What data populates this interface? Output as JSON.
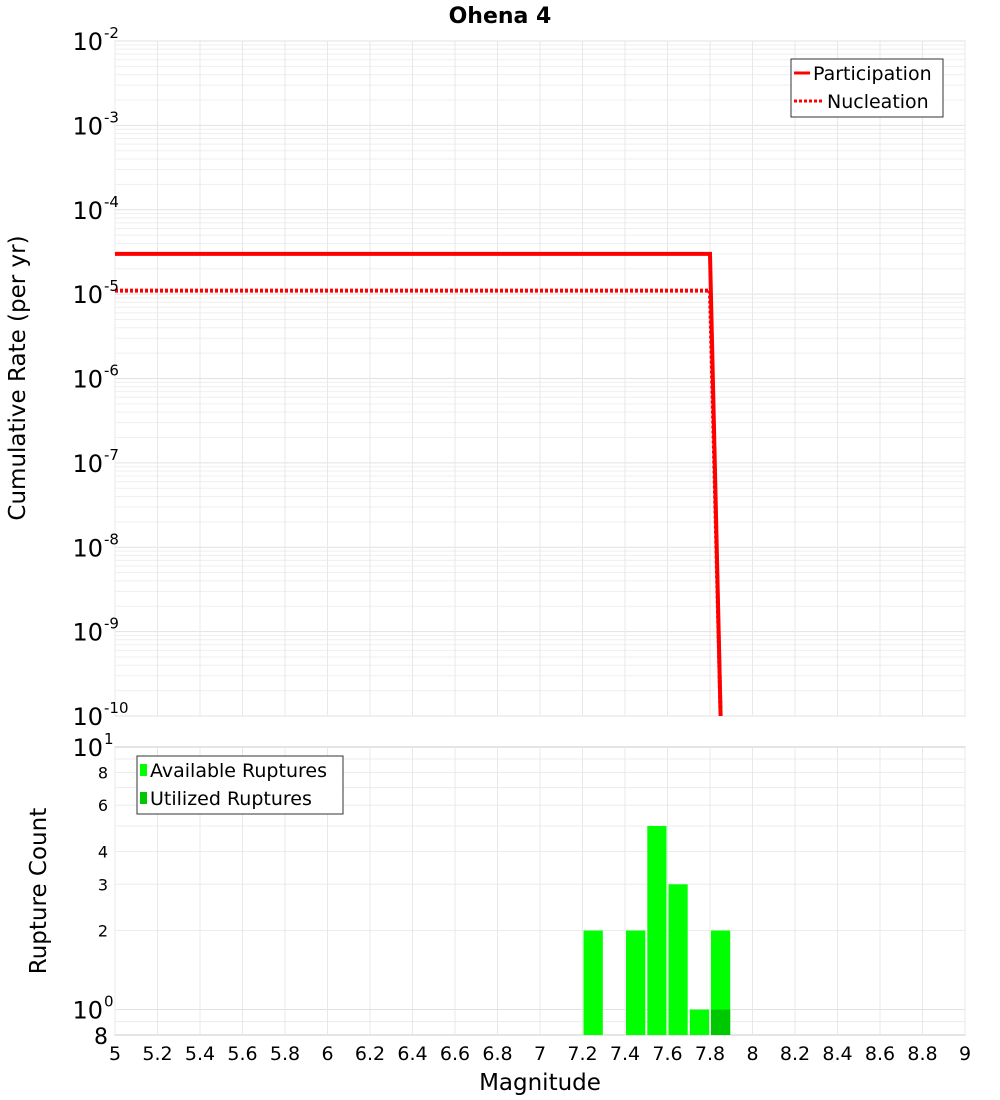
{
  "chart_data": [
    {
      "type": "line",
      "title": "Ohena 4",
      "xlabel": "Magnitude",
      "ylabel": "Cumulative Rate (per yr)",
      "yscale": "log",
      "ylim": [
        1e-10,
        0.01
      ],
      "xlim": [
        5,
        9
      ],
      "y_ticks": [
        {
          "base": "10",
          "exp": "-2"
        },
        {
          "base": "10",
          "exp": "-3"
        },
        {
          "base": "10",
          "exp": "-4"
        },
        {
          "base": "10",
          "exp": "-5"
        },
        {
          "base": "10",
          "exp": "-6"
        },
        {
          "base": "10",
          "exp": "-7"
        },
        {
          "base": "10",
          "exp": "-8"
        },
        {
          "base": "10",
          "exp": "-9"
        },
        {
          "base": "10",
          "exp": "-10"
        }
      ],
      "grid": true,
      "legend_position": "top-right",
      "series": [
        {
          "name": "Participation",
          "color": "#ff0000",
          "style": "solid",
          "x": [
            5.0,
            7.8,
            7.85
          ],
          "y": [
            3e-05,
            3e-05,
            1e-10
          ]
        },
        {
          "name": "Nucleation",
          "color": "#ff0000",
          "style": "dotted",
          "x": [
            5.0,
            7.8,
            7.85
          ],
          "y": [
            1.1e-05,
            1.1e-05,
            1e-10
          ]
        }
      ]
    },
    {
      "type": "bar",
      "xlabel": "Magnitude",
      "ylabel": "Rupture Count",
      "yscale": "log",
      "ylim": [
        0.8,
        10
      ],
      "x_ticks": [
        "5",
        "5.2",
        "5.4",
        "5.6",
        "5.8",
        "6",
        "6.2",
        "6.4",
        "6.6",
        "6.8",
        "7",
        "7.2",
        "7.4",
        "7.6",
        "7.8",
        "8",
        "8.2",
        "8.4",
        "8.6",
        "8.8",
        "9"
      ],
      "y_ticks": [
        {
          "label": "8",
          "value": 8,
          "size": "small"
        },
        {
          "label": "6",
          "value": 6,
          "size": "small"
        },
        {
          "label": "4",
          "value": 4,
          "size": "small"
        },
        {
          "label": "3",
          "value": 3,
          "size": "small"
        },
        {
          "label": "2",
          "value": 2,
          "size": "small"
        }
      ],
      "y_major_ticks": [
        {
          "base": "10",
          "exp": "1",
          "value": 10
        },
        {
          "base": "10",
          "exp": "0",
          "value": 1
        }
      ],
      "y_bottom_label": "8",
      "legend_position": "top-left",
      "series": [
        {
          "name": "Available Ruptures",
          "color": "#00ff00",
          "x": [
            7.25,
            7.45,
            7.55,
            7.65,
            7.75,
            7.85
          ],
          "values": [
            2,
            2,
            5,
            3,
            1,
            2
          ]
        },
        {
          "name": "Utilized Ruptures",
          "color": "#00c800",
          "x": [
            7.85
          ],
          "values": [
            1
          ]
        }
      ],
      "bin_width": 0.1
    }
  ]
}
